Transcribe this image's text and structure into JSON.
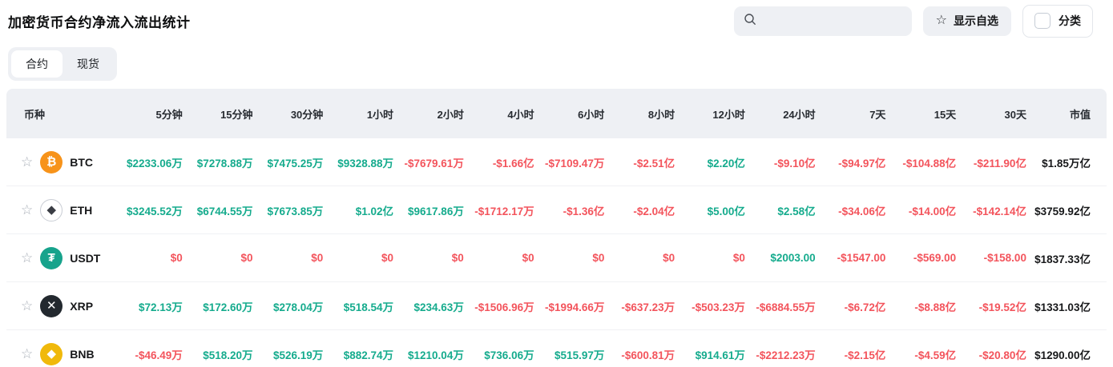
{
  "page": {
    "title": "加密货币合约净流入流出统计"
  },
  "toolbar": {
    "search_placeholder": "",
    "search_value": "",
    "show_favorites_label": "显示自选",
    "category_label": "分类",
    "category_checked": false
  },
  "tabs": [
    {
      "label": "合约",
      "active": true
    },
    {
      "label": "现货",
      "active": false
    }
  ],
  "colors": {
    "up": "#15ab8d",
    "down": "#f3545c",
    "cap_text": "#17181a",
    "header_bg": "#eef0f4"
  },
  "table": {
    "columns": [
      "币种",
      "5分钟",
      "15分钟",
      "30分钟",
      "1小时",
      "2小时",
      "4小时",
      "6小时",
      "8小时",
      "12小时",
      "24小时",
      "7天",
      "15天",
      "30天",
      "市值"
    ],
    "rows": [
      {
        "symbol": "BTC",
        "icon": {
          "name": "btc-icon",
          "glyph": "₿",
          "bg": "#f7931a",
          "fg": "#ffffff"
        },
        "cells": [
          {
            "t": "$2233.06万",
            "d": "up"
          },
          {
            "t": "$7278.88万",
            "d": "up"
          },
          {
            "t": "$7475.25万",
            "d": "up"
          },
          {
            "t": "$9328.88万",
            "d": "up"
          },
          {
            "t": "-$7679.61万",
            "d": "down"
          },
          {
            "t": "-$1.66亿",
            "d": "down"
          },
          {
            "t": "-$7109.47万",
            "d": "down"
          },
          {
            "t": "-$2.51亿",
            "d": "down"
          },
          {
            "t": "$2.20亿",
            "d": "up"
          },
          {
            "t": "-$9.10亿",
            "d": "down"
          },
          {
            "t": "-$94.97亿",
            "d": "down"
          },
          {
            "t": "-$104.88亿",
            "d": "down"
          },
          {
            "t": "-$211.90亿",
            "d": "down"
          }
        ],
        "cap": "$1.85万亿"
      },
      {
        "symbol": "ETH",
        "icon": {
          "name": "eth-icon",
          "glyph": "◆",
          "bg": "#ffffff",
          "fg": "#3a3d44",
          "border": "#c9cdd4"
        },
        "cells": [
          {
            "t": "$3245.52万",
            "d": "up"
          },
          {
            "t": "$6744.55万",
            "d": "up"
          },
          {
            "t": "$7673.85万",
            "d": "up"
          },
          {
            "t": "$1.02亿",
            "d": "up"
          },
          {
            "t": "$9617.86万",
            "d": "up"
          },
          {
            "t": "-$1712.17万",
            "d": "down"
          },
          {
            "t": "-$1.36亿",
            "d": "down"
          },
          {
            "t": "-$2.04亿",
            "d": "down"
          },
          {
            "t": "$5.00亿",
            "d": "up"
          },
          {
            "t": "$2.58亿",
            "d": "up"
          },
          {
            "t": "-$34.06亿",
            "d": "down"
          },
          {
            "t": "-$14.00亿",
            "d": "down"
          },
          {
            "t": "-$142.14亿",
            "d": "down"
          }
        ],
        "cap": "$3759.92亿"
      },
      {
        "symbol": "USDT",
        "icon": {
          "name": "usdt-icon",
          "glyph": "₮",
          "bg": "#17a38c",
          "fg": "#ffffff"
        },
        "cells": [
          {
            "t": "$0",
            "d": "down"
          },
          {
            "t": "$0",
            "d": "down"
          },
          {
            "t": "$0",
            "d": "down"
          },
          {
            "t": "$0",
            "d": "down"
          },
          {
            "t": "$0",
            "d": "down"
          },
          {
            "t": "$0",
            "d": "down"
          },
          {
            "t": "$0",
            "d": "down"
          },
          {
            "t": "$0",
            "d": "down"
          },
          {
            "t": "$0",
            "d": "down"
          },
          {
            "t": "$2003.00",
            "d": "up"
          },
          {
            "t": "-$1547.00",
            "d": "down"
          },
          {
            "t": "-$569.00",
            "d": "down"
          },
          {
            "t": "-$158.00",
            "d": "down"
          }
        ],
        "cap": "$1837.33亿"
      },
      {
        "symbol": "XRP",
        "icon": {
          "name": "xrp-icon",
          "glyph": "✕",
          "bg": "#23292f",
          "fg": "#ffffff"
        },
        "cells": [
          {
            "t": "$72.13万",
            "d": "up"
          },
          {
            "t": "$172.60万",
            "d": "up"
          },
          {
            "t": "$278.04万",
            "d": "up"
          },
          {
            "t": "$518.54万",
            "d": "up"
          },
          {
            "t": "$234.63万",
            "d": "up"
          },
          {
            "t": "-$1506.96万",
            "d": "down"
          },
          {
            "t": "-$1994.66万",
            "d": "down"
          },
          {
            "t": "-$637.23万",
            "d": "down"
          },
          {
            "t": "-$503.23万",
            "d": "down"
          },
          {
            "t": "-$6884.55万",
            "d": "down"
          },
          {
            "t": "-$6.72亿",
            "d": "down"
          },
          {
            "t": "-$8.88亿",
            "d": "down"
          },
          {
            "t": "-$19.52亿",
            "d": "down"
          }
        ],
        "cap": "$1331.03亿"
      },
      {
        "symbol": "BNB",
        "icon": {
          "name": "bnb-icon",
          "glyph": "◆",
          "bg": "#f0b90b",
          "fg": "#ffffff"
        },
        "cells": [
          {
            "t": "-$46.49万",
            "d": "down"
          },
          {
            "t": "$518.20万",
            "d": "up"
          },
          {
            "t": "$526.19万",
            "d": "up"
          },
          {
            "t": "$882.74万",
            "d": "up"
          },
          {
            "t": "$1210.04万",
            "d": "up"
          },
          {
            "t": "$736.06万",
            "d": "up"
          },
          {
            "t": "$515.97万",
            "d": "up"
          },
          {
            "t": "-$600.81万",
            "d": "down"
          },
          {
            "t": "$914.61万",
            "d": "up"
          },
          {
            "t": "-$2212.23万",
            "d": "down"
          },
          {
            "t": "-$2.15亿",
            "d": "down"
          },
          {
            "t": "-$4.59亿",
            "d": "down"
          },
          {
            "t": "-$20.80亿",
            "d": "down"
          }
        ],
        "cap": "$1290.00亿"
      }
    ]
  }
}
